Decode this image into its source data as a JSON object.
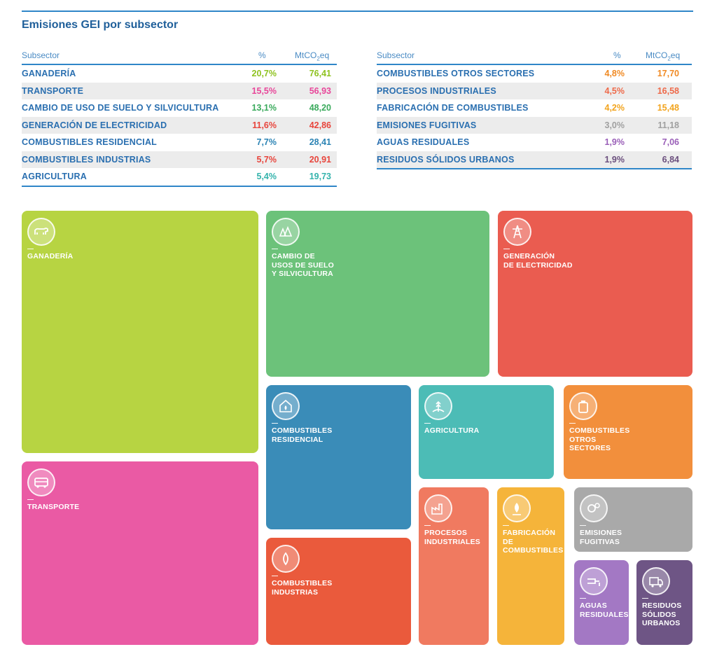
{
  "chart_data": {
    "type": "table",
    "title": "Emisiones GEI por subsector",
    "columns": [
      "Subsector",
      "%",
      "MtCO₂eq"
    ],
    "rows": [
      {
        "name": "GANADERÍA",
        "pct": "20,7%",
        "val": "76,41",
        "color": "#8ec21f"
      },
      {
        "name": "TRANSPORTE",
        "pct": "15,5%",
        "val": "56,93",
        "color": "#e8479a"
      },
      {
        "name": "CAMBIO DE USO DE SUELO Y SILVICULTURA",
        "pct": "13,1%",
        "val": "48,20",
        "color": "#3aaa5c"
      },
      {
        "name": "GENERACIÓN DE ELECTRICIDAD",
        "pct": "11,6%",
        "val": "42,86",
        "color": "#e8453c"
      },
      {
        "name": "COMBUSTIBLES RESIDENCIAL",
        "pct": "7,7%",
        "val": "28,41",
        "color": "#2b83b4"
      },
      {
        "name": "COMBUSTIBLES INDUSTRIAS",
        "pct": "5,7%",
        "val": "20,91",
        "color": "#e8453c"
      },
      {
        "name": "AGRICULTURA",
        "pct": "5,4%",
        "val": "19,73",
        "color": "#34b3ac"
      },
      {
        "name": "COMBUSTIBLES OTROS SECTORES",
        "pct": "4,8%",
        "val": "17,70",
        "color": "#f08a24"
      },
      {
        "name": "PROCESOS INDUSTRIALES",
        "pct": "4,5%",
        "val": "16,58",
        "color": "#ee6a4a"
      },
      {
        "name": "FABRICACIÓN DE COMBUSTIBLES",
        "pct": "4,2%",
        "val": "15,48",
        "color": "#f2a41e"
      },
      {
        "name": "EMISIONES FUGITIVAS",
        "pct": "3,0%",
        "val": "11,18",
        "color": "#a0a0a0"
      },
      {
        "name": "AGUAS RESIDUALES",
        "pct": "1,9%",
        "val": "7,06",
        "color": "#9a5fb8"
      },
      {
        "name": "RESIDUOS SÓLIDOS URBANOS",
        "pct": "1,9%",
        "val": "6,84",
        "color": "#6b4f7e"
      }
    ],
    "treemap": [
      {
        "label": "GANADERÍA",
        "color": "#b7d442"
      },
      {
        "label": "TRANSPORTE",
        "color": "#ea5aa4"
      },
      {
        "label": "CAMBIO DE\nUSOS DE SUELO\nY SILVICULTURA",
        "color": "#6cc27a"
      },
      {
        "label": "GENERACIÓN\nDE ELECTRICIDAD",
        "color": "#ea5c50"
      },
      {
        "label": "COMBUSTIBLES\nRESIDENCIAL",
        "color": "#3a8cb8"
      },
      {
        "label": "COMBUSTIBLES\nINDUSTRIAS",
        "color": "#ea5a3c"
      },
      {
        "label": "AGRICULTURA",
        "color": "#4cbcb6"
      },
      {
        "label": "COMBUSTIBLES\nOTROS\nSECTORES",
        "color": "#f28f3c"
      },
      {
        "label": "PROCESOS\nINDUSTRIALES",
        "color": "#f07a60"
      },
      {
        "label": "FABRICACIÓN\nDE\nCOMBUSTIBLES",
        "color": "#f5b43a"
      },
      {
        "label": "EMISIONES\nFUGITIVAS",
        "color": "#a9a9a9"
      },
      {
        "label": "AGUAS\nRESIDUALES",
        "color": "#a378c4"
      },
      {
        "label": "RESIDUOS\nSÓLIDOS\nURBANOS",
        "color": "#6e5585"
      }
    ]
  }
}
